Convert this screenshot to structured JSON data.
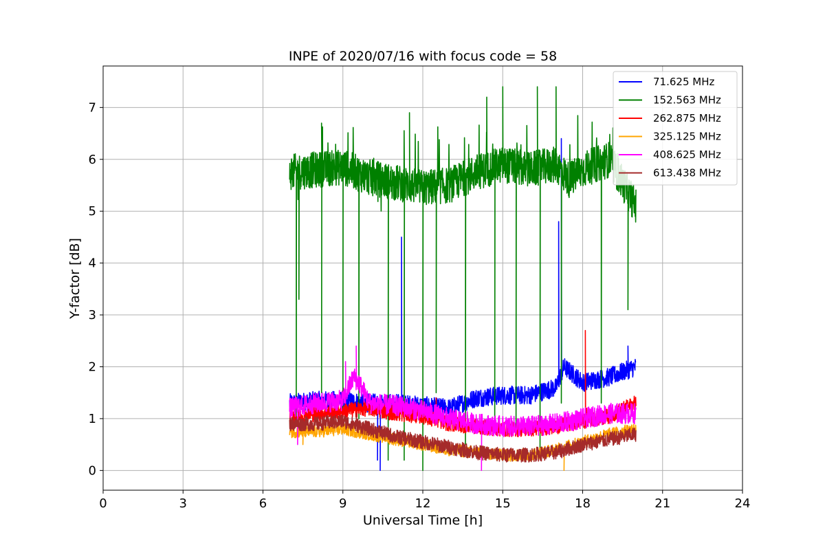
{
  "chart_data": {
    "type": "line",
    "title": "INPE of 2020/07/16 with focus code = 58",
    "xlabel": "Universal Time [h]",
    "ylabel": "Y-factor [dB]",
    "xlim": [
      0,
      24
    ],
    "ylim": [
      -0.38,
      7.8
    ],
    "xticks": [
      0,
      3,
      6,
      9,
      12,
      15,
      18,
      21,
      24
    ],
    "yticks": [
      0,
      1,
      2,
      3,
      4,
      5,
      6,
      7
    ],
    "grid": true,
    "legend_position": "top-right",
    "time_range": [
      7.0,
      20.0
    ],
    "series": [
      {
        "name": " 71.625 MHz",
        "color": "#0000ff",
        "points": [
          [
            7.0,
            1.3
          ],
          [
            8.0,
            1.35
          ],
          [
            9.0,
            1.35
          ],
          [
            10.0,
            1.3
          ],
          [
            11.0,
            1.3
          ],
          [
            12.0,
            1.25
          ],
          [
            13.0,
            1.2
          ],
          [
            13.5,
            1.3
          ],
          [
            14.0,
            1.4
          ],
          [
            15.0,
            1.45
          ],
          [
            16.0,
            1.45
          ],
          [
            17.0,
            1.6
          ],
          [
            17.3,
            2.0
          ],
          [
            18.0,
            1.7
          ],
          [
            19.0,
            1.8
          ],
          [
            20.0,
            2.0
          ]
        ],
        "spikes": [
          [
            10.3,
            0.2
          ],
          [
            10.4,
            0.0
          ],
          [
            11.2,
            4.5
          ],
          [
            17.1,
            4.8
          ],
          [
            17.2,
            6.4
          ],
          [
            19.7,
            2.4
          ]
        ]
      },
      {
        "name": "152.563 MHz",
        "color": "#008000",
        "points": [
          [
            7.0,
            5.75
          ],
          [
            8.0,
            5.8
          ],
          [
            9.0,
            5.85
          ],
          [
            10.0,
            5.65
          ],
          [
            11.0,
            5.55
          ],
          [
            12.0,
            5.45
          ],
          [
            13.0,
            5.5
          ],
          [
            14.0,
            5.75
          ],
          [
            15.0,
            5.9
          ],
          [
            16.0,
            5.8
          ],
          [
            17.0,
            5.9
          ],
          [
            17.5,
            5.6
          ],
          [
            18.0,
            5.8
          ],
          [
            19.0,
            6.0
          ],
          [
            20.0,
            5.1
          ]
        ],
        "spikes": [
          [
            7.25,
            1.0
          ],
          [
            7.35,
            3.3
          ],
          [
            8.2,
            1.5
          ],
          [
            9.0,
            1.2
          ],
          [
            9.6,
            1.0
          ],
          [
            10.7,
            0.2
          ],
          [
            11.3,
            0.2
          ],
          [
            12.0,
            0.0
          ],
          [
            12.5,
            1.5
          ],
          [
            13.6,
            0.5
          ],
          [
            14.7,
            0.8
          ],
          [
            15.5,
            0.7
          ],
          [
            16.4,
            0.3
          ],
          [
            17.2,
            1.3
          ],
          [
            18.7,
            1.3
          ],
          [
            19.7,
            3.1
          ],
          [
            14.4,
            7.2
          ],
          [
            15.0,
            7.4
          ],
          [
            16.3,
            7.4
          ],
          [
            17.0,
            7.4
          ],
          [
            11.5,
            6.9
          ],
          [
            8.2,
            6.7
          ]
        ]
      },
      {
        "name": "262.875 MHz",
        "color": "#ff0000",
        "points": [
          [
            7.0,
            1.0
          ],
          [
            8.0,
            1.1
          ],
          [
            9.0,
            1.15
          ],
          [
            10.0,
            1.2
          ],
          [
            11.0,
            1.1
          ],
          [
            12.0,
            1.05
          ],
          [
            13.0,
            0.9
          ],
          [
            14.0,
            0.85
          ],
          [
            15.0,
            0.8
          ],
          [
            16.0,
            0.8
          ],
          [
            17.0,
            0.85
          ],
          [
            18.0,
            0.95
          ],
          [
            19.0,
            1.05
          ],
          [
            20.0,
            1.3
          ]
        ],
        "spikes": [
          [
            12.5,
            1.4
          ],
          [
            18.1,
            2.7
          ],
          [
            18.15,
            1.2
          ]
        ]
      },
      {
        "name": "325.125 MHz",
        "color": "#ffa500",
        "points": [
          [
            7.0,
            0.75
          ],
          [
            8.0,
            0.75
          ],
          [
            9.0,
            0.8
          ],
          [
            10.0,
            0.7
          ],
          [
            11.0,
            0.6
          ],
          [
            12.0,
            0.5
          ],
          [
            13.0,
            0.4
          ],
          [
            14.0,
            0.35
          ],
          [
            15.0,
            0.3
          ],
          [
            16.0,
            0.3
          ],
          [
            17.0,
            0.4
          ],
          [
            18.0,
            0.55
          ],
          [
            19.0,
            0.7
          ],
          [
            20.0,
            0.8
          ]
        ],
        "spikes": [
          [
            7.5,
            0.5
          ],
          [
            17.3,
            0.0
          ]
        ]
      },
      {
        "name": "408.625 MHz",
        "color": "#ff00ff",
        "points": [
          [
            7.0,
            1.2
          ],
          [
            8.0,
            1.3
          ],
          [
            9.0,
            1.35
          ],
          [
            9.4,
            1.8
          ],
          [
            9.6,
            1.7
          ],
          [
            10.0,
            1.3
          ],
          [
            11.0,
            1.25
          ],
          [
            12.0,
            1.15
          ],
          [
            13.0,
            1.0
          ],
          [
            14.0,
            0.9
          ],
          [
            15.0,
            0.85
          ],
          [
            16.0,
            0.85
          ],
          [
            17.0,
            0.9
          ],
          [
            18.0,
            1.0
          ],
          [
            19.0,
            1.1
          ],
          [
            20.0,
            1.1
          ]
        ],
        "spikes": [
          [
            9.5,
            2.4
          ],
          [
            9.1,
            2.1
          ],
          [
            7.3,
            0.5
          ],
          [
            14.2,
            0.0
          ]
        ]
      },
      {
        "name": "613.438 MHz",
        "color": "#a52a2a",
        "points": [
          [
            7.0,
            0.9
          ],
          [
            8.0,
            0.9
          ],
          [
            9.0,
            0.95
          ],
          [
            10.0,
            0.8
          ],
          [
            11.0,
            0.65
          ],
          [
            12.0,
            0.55
          ],
          [
            13.0,
            0.45
          ],
          [
            14.0,
            0.35
          ],
          [
            15.0,
            0.3
          ],
          [
            16.0,
            0.3
          ],
          [
            17.0,
            0.35
          ],
          [
            18.0,
            0.5
          ],
          [
            19.0,
            0.6
          ],
          [
            20.0,
            0.7
          ]
        ],
        "spikes": [
          [
            9.5,
            1.1
          ]
        ]
      }
    ]
  }
}
